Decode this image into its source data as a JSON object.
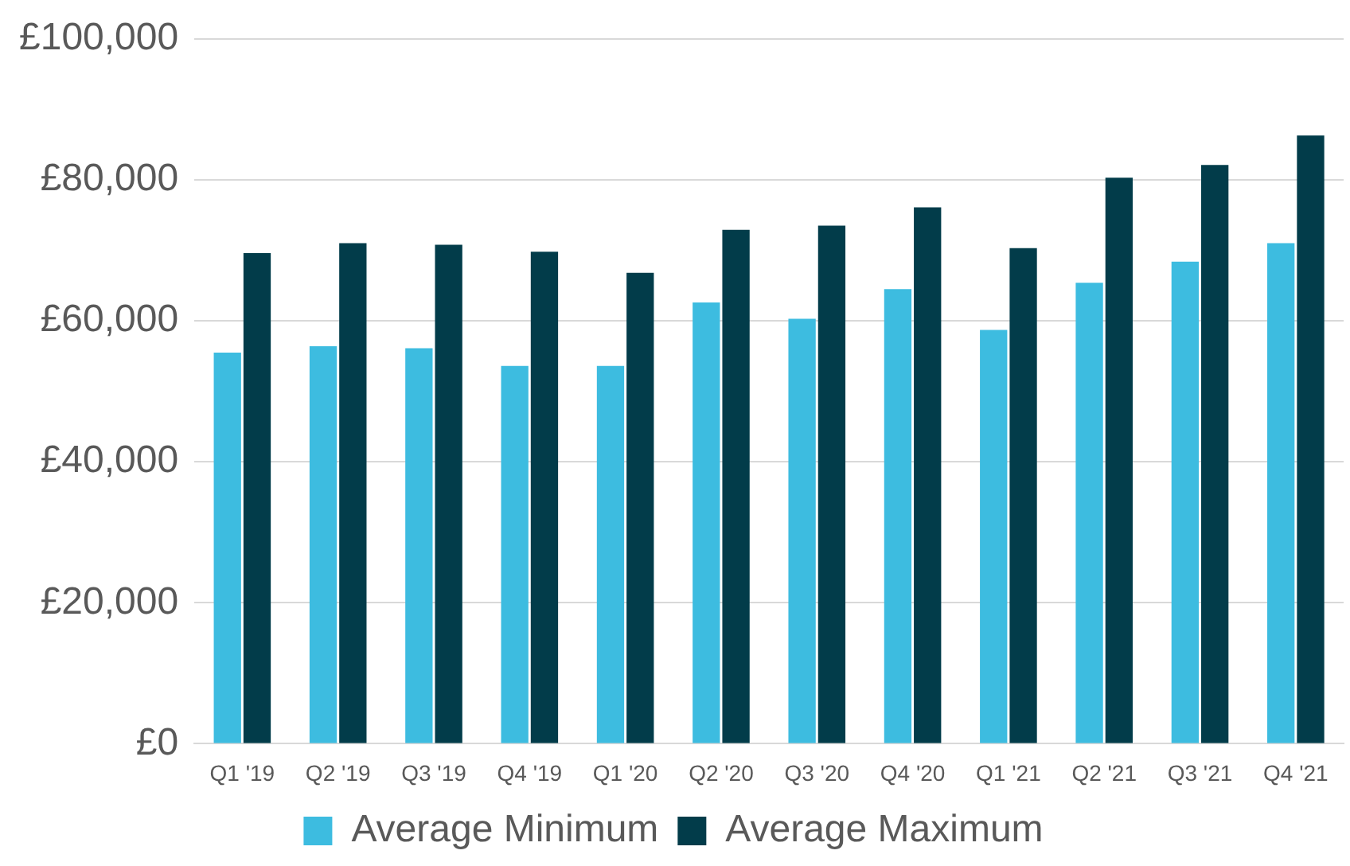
{
  "chart_data": {
    "type": "bar",
    "categories": [
      "Q1 '19",
      "Q2 '19",
      "Q3 '19",
      "Q4 '19",
      "Q1 '20",
      "Q2 '20",
      "Q3 '20",
      "Q4 '20",
      "Q1 '21",
      "Q2 '21",
      "Q3 '21",
      "Q4 '21"
    ],
    "series": [
      {
        "name": "Average Minimum",
        "color": "#3dbce0",
        "values": [
          55500,
          56400,
          56100,
          53600,
          53600,
          62600,
          60300,
          64500,
          58700,
          65400,
          68400,
          71000
        ]
      },
      {
        "name": "Average Maximum",
        "color": "#023c4a",
        "values": [
          69600,
          71000,
          70800,
          69800,
          66800,
          72900,
          73500,
          76100,
          70300,
          80300,
          82100,
          86300
        ]
      }
    ],
    "ylim": [
      0,
      100000
    ],
    "yticks": [
      {
        "value": 0,
        "label": "£0"
      },
      {
        "value": 20000,
        "label": "£20,000"
      },
      {
        "value": 40000,
        "label": "£40,000"
      },
      {
        "value": 60000,
        "label": "£60,000"
      },
      {
        "value": 80000,
        "label": "£80,000"
      },
      {
        "value": 100000,
        "label": "£100,000"
      }
    ],
    "grid": "y",
    "legend": "bottom"
  }
}
